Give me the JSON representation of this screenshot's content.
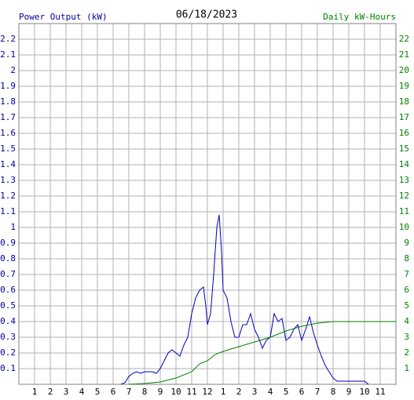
{
  "chart_data": {
    "type": "line",
    "title": "06/18/2023",
    "y_label": "Power Output (kW)",
    "y2_label": "Daily kW-Hours",
    "xlim": [
      0,
      24
    ],
    "xticks": [
      1,
      2,
      3,
      4,
      5,
      6,
      7,
      8,
      9,
      10,
      11,
      12,
      {
        "value": 13,
        "label": "1"
      },
      {
        "value": 14,
        "label": "2"
      },
      {
        "value": 15,
        "label": "3"
      },
      {
        "value": 16,
        "label": "4"
      },
      {
        "value": 17,
        "label": "5"
      },
      {
        "value": 18,
        "label": "6"
      },
      {
        "value": 19,
        "label": "7"
      },
      {
        "value": 20,
        "label": "8"
      },
      {
        "value": 21,
        "label": "9"
      },
      {
        "value": 22,
        "label": "10"
      },
      {
        "value": 23,
        "label": "11"
      }
    ],
    "ylim": [
      0,
      2.3
    ],
    "yticks": [
      0.1,
      0.2,
      0.3,
      0.4,
      0.5,
      0.6,
      0.7,
      0.8,
      0.9,
      1.0,
      1.1,
      1.2,
      1.3,
      1.4,
      1.5,
      1.6,
      1.7,
      1.8,
      1.9,
      2.0,
      2.1,
      2.2
    ],
    "y2lim": [
      0,
      23
    ],
    "y2ticks": [
      1,
      2,
      3,
      4,
      5,
      6,
      7,
      8,
      9,
      10,
      11,
      12,
      13,
      14,
      15,
      16,
      17,
      18,
      19,
      20,
      21,
      22
    ],
    "grid": true,
    "y_label_color": "#0000a0",
    "y2_label_color": "#008000",
    "series": [
      {
        "name": "Power Output (kW)",
        "color": "#0000c0",
        "x": [
          6.5,
          6.75,
          7.0,
          7.25,
          7.5,
          7.75,
          8.0,
          8.5,
          8.75,
          9.0,
          9.25,
          9.5,
          9.75,
          10.0,
          10.25,
          10.5,
          10.75,
          11.0,
          11.25,
          11.5,
          11.75,
          11.9,
          12.0,
          12.2,
          12.4,
          12.6,
          12.75,
          12.9,
          13.0,
          13.25,
          13.5,
          13.75,
          14.0,
          14.25,
          14.5,
          14.75,
          15.0,
          15.25,
          15.5,
          15.75,
          16.0,
          16.25,
          16.5,
          16.75,
          17.0,
          17.25,
          17.5,
          17.75,
          18.0,
          18.25,
          18.5,
          18.75,
          19.0,
          19.25,
          19.5,
          19.75,
          20.0,
          20.25,
          21.0,
          22.0,
          22.25
        ],
        "values": [
          0,
          0.01,
          0.05,
          0.07,
          0.08,
          0.07,
          0.08,
          0.08,
          0.07,
          0.1,
          0.15,
          0.2,
          0.22,
          0.2,
          0.18,
          0.25,
          0.3,
          0.45,
          0.55,
          0.6,
          0.62,
          0.5,
          0.38,
          0.45,
          0.7,
          1.0,
          1.08,
          0.85,
          0.6,
          0.55,
          0.4,
          0.3,
          0.3,
          0.38,
          0.38,
          0.45,
          0.35,
          0.3,
          0.23,
          0.28,
          0.3,
          0.45,
          0.4,
          0.42,
          0.28,
          0.3,
          0.35,
          0.38,
          0.28,
          0.35,
          0.43,
          0.33,
          0.25,
          0.18,
          0.12,
          0.08,
          0.04,
          0.02,
          0.02,
          0.02,
          0
        ]
      },
      {
        "name": "Daily kW-Hours",
        "color": "#008000",
        "axis": "y2",
        "x": [
          7.0,
          8.0,
          9.0,
          10.0,
          11.0,
          11.5,
          12.0,
          12.5,
          13.0,
          14.0,
          15.0,
          16.0,
          17.0,
          18.0,
          19.0,
          20.0,
          24.0
        ],
        "values": [
          0,
          0.05,
          0.15,
          0.4,
          0.8,
          1.3,
          1.5,
          1.9,
          2.1,
          2.4,
          2.7,
          3.0,
          3.4,
          3.7,
          3.9,
          4.0,
          4.0
        ]
      }
    ]
  }
}
